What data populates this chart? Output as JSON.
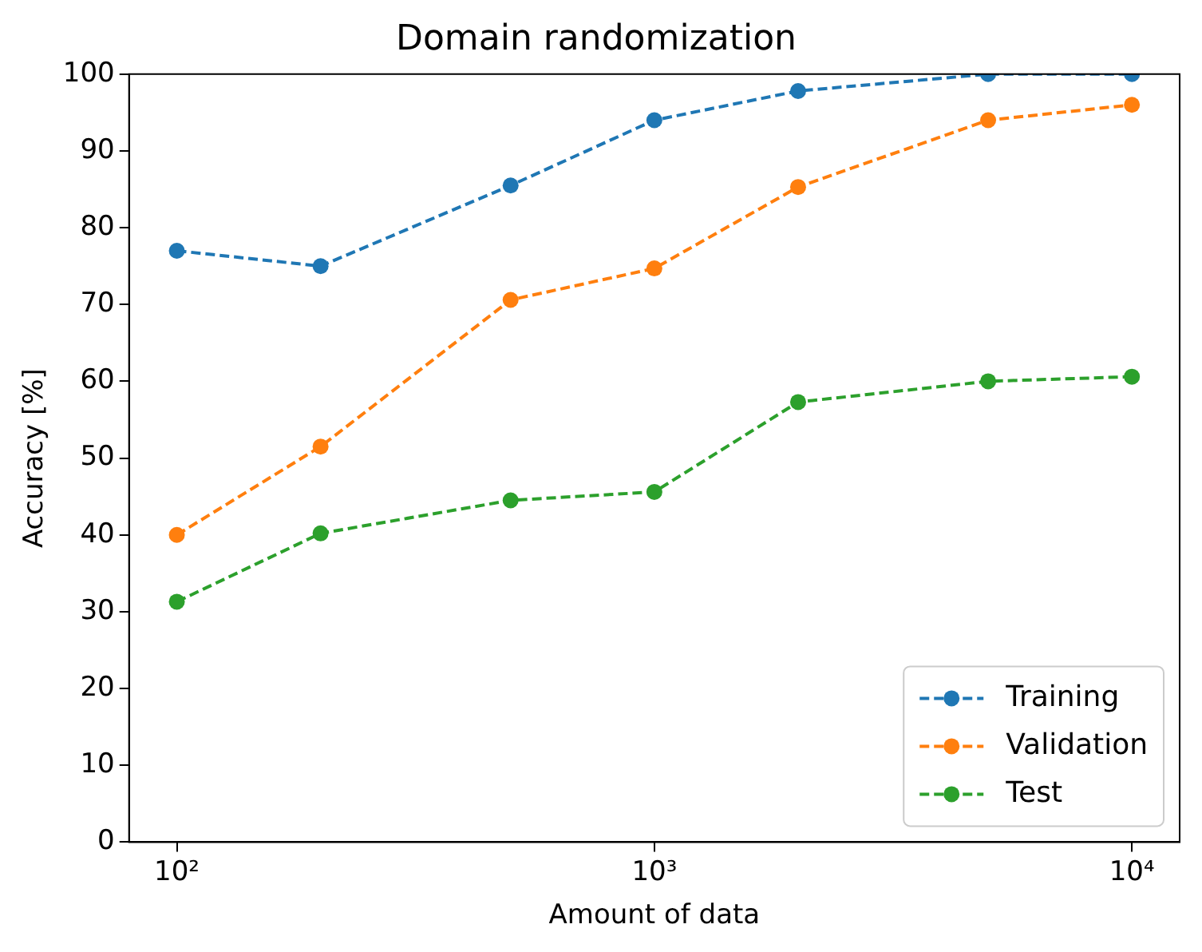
{
  "chart_data": {
    "type": "line",
    "title": "Domain randomization",
    "xlabel": "Amount of data",
    "ylabel": "Accuracy [%]",
    "x": [
      100,
      200,
      500,
      1000,
      2000,
      5000,
      10000
    ],
    "series": [
      {
        "name": "Training",
        "color": "#1f77b4",
        "values": [
          77,
          75,
          85.5,
          94,
          97.8,
          100,
          100
        ]
      },
      {
        "name": "Validation",
        "color": "#ff7f0e",
        "values": [
          40,
          51.5,
          70.6,
          74.7,
          85.3,
          94,
          96
        ]
      },
      {
        "name": "Test",
        "color": "#2ca02c",
        "values": [
          31.3,
          40.2,
          44.5,
          45.6,
          57.3,
          60,
          60.6
        ]
      }
    ],
    "log": "x",
    "xlim": [
      79.43,
      12589
    ],
    "xticks": [
      {
        "value": 100,
        "label": "10²"
      },
      {
        "value": 1000,
        "label": "10³"
      },
      {
        "value": 10000,
        "label": "10⁴"
      }
    ],
    "ylim": [
      0,
      100
    ],
    "yticks": [
      0,
      10,
      20,
      30,
      40,
      50,
      60,
      70,
      80,
      90,
      100
    ],
    "marker": "circle",
    "line_style": "dashed",
    "legend": "bottom right",
    "grid": false
  }
}
